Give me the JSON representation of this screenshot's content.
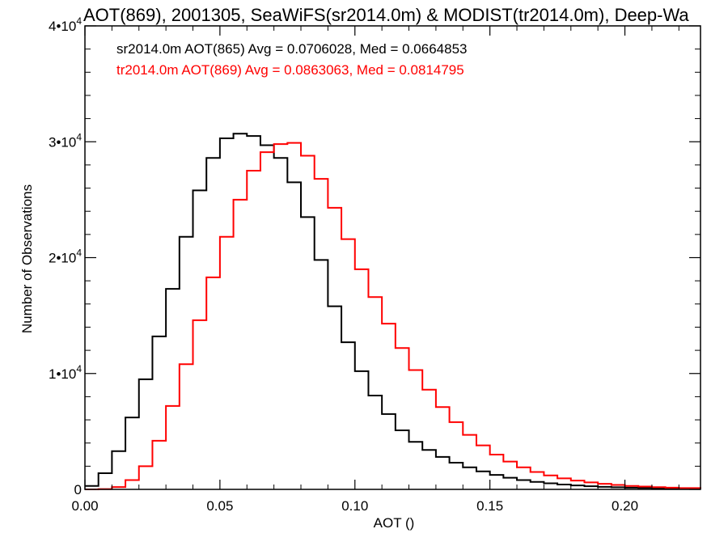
{
  "chart_data": {
    "type": "line",
    "title": "AOT(869), 2001305, SeaWiFS(sr2014.0m) & MODIST(tr2014.0m), Deep-Wa",
    "xlabel": "AOT ()",
    "ylabel": "Number of Observations",
    "xlim": [
      0.0,
      0.228
    ],
    "ylim": [
      0,
      40000
    ],
    "x_ticks": [
      "0.00",
      "0.05",
      "0.10",
      "0.15",
      "0.20"
    ],
    "y_ticks": [
      {
        "value": 0,
        "mantissa": "0",
        "exponent": ""
      },
      {
        "value": 10000,
        "mantissa": "1•10",
        "exponent": "4"
      },
      {
        "value": 20000,
        "mantissa": "2•10",
        "exponent": "4"
      },
      {
        "value": 30000,
        "mantissa": "3•10",
        "exponent": "4"
      },
      {
        "value": 40000,
        "mantissa": "4•10",
        "exponent": "4"
      }
    ],
    "grid": false,
    "annotations": [
      {
        "text": "sr2014.0m AOT(865) Avg = 0.0706028, Med = 0.0664853",
        "color": "#000000"
      },
      {
        "text": "tr2014.0m AOT(869) Avg = 0.0863063, Med = 0.0814795",
        "color": "#ff0000"
      }
    ],
    "series": [
      {
        "color": "#000000",
        "step": true,
        "x": [
          0.0,
          0.005,
          0.01,
          0.015,
          0.02,
          0.025,
          0.03,
          0.035,
          0.04,
          0.045,
          0.05,
          0.055,
          0.06,
          0.065,
          0.07,
          0.075,
          0.08,
          0.085,
          0.09,
          0.095,
          0.1,
          0.105,
          0.11,
          0.115,
          0.12,
          0.125,
          0.13,
          0.135,
          0.14,
          0.145,
          0.15,
          0.155,
          0.16,
          0.165,
          0.17,
          0.175,
          0.18,
          0.185,
          0.19,
          0.195,
          0.2,
          0.205,
          0.21,
          0.215,
          0.22,
          0.228
        ],
        "y": [
          300,
          1400,
          3300,
          6200,
          9500,
          13200,
          17300,
          21800,
          25800,
          28600,
          30300,
          30700,
          30500,
          29700,
          28600,
          26500,
          23500,
          19800,
          15800,
          12700,
          10200,
          8100,
          6500,
          5100,
          4100,
          3400,
          2800,
          2300,
          1900,
          1550,
          1250,
          1000,
          800,
          650,
          520,
          420,
          340,
          270,
          220,
          180,
          150,
          120,
          100,
          80,
          60,
          40
        ]
      },
      {
        "color": "#ff0000",
        "step": true,
        "x": [
          0.0,
          0.005,
          0.01,
          0.015,
          0.02,
          0.025,
          0.03,
          0.035,
          0.04,
          0.045,
          0.05,
          0.055,
          0.06,
          0.065,
          0.07,
          0.075,
          0.08,
          0.085,
          0.09,
          0.095,
          0.1,
          0.105,
          0.11,
          0.115,
          0.12,
          0.125,
          0.13,
          0.135,
          0.14,
          0.145,
          0.15,
          0.155,
          0.16,
          0.165,
          0.17,
          0.175,
          0.18,
          0.185,
          0.19,
          0.195,
          0.2,
          0.205,
          0.21,
          0.215,
          0.22,
          0.228
        ],
        "y": [
          0,
          30,
          200,
          800,
          2000,
          4200,
          7200,
          10800,
          14600,
          18300,
          21800,
          25000,
          27500,
          29100,
          29800,
          29900,
          28800,
          26800,
          24300,
          21600,
          19000,
          16600,
          14300,
          12200,
          10300,
          8600,
          7100,
          5800,
          4700,
          3800,
          3000,
          2400,
          1900,
          1500,
          1200,
          950,
          760,
          600,
          480,
          380,
          300,
          240,
          190,
          150,
          110,
          70
        ]
      }
    ]
  }
}
